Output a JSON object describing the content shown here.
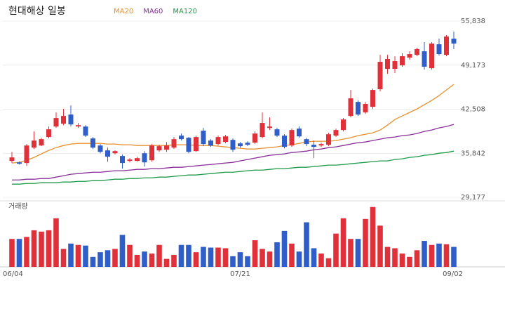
{
  "chart_data": {
    "type": "candlestick",
    "title": "현대해상 일봉",
    "categories": [
      "06/04",
      null,
      null,
      null,
      null,
      null,
      null,
      null,
      null,
      null,
      null,
      null,
      null,
      null,
      null,
      null,
      null,
      null,
      null,
      null,
      null,
      null,
      null,
      null,
      null,
      null,
      null,
      null,
      null,
      null,
      null,
      "07/21",
      null,
      null,
      null,
      null,
      null,
      null,
      null,
      null,
      null,
      null,
      null,
      null,
      null,
      null,
      null,
      null,
      null,
      null,
      null,
      null,
      null,
      null,
      null,
      null,
      null,
      null,
      null,
      null,
      "09/02"
    ],
    "open": [
      34690,
      34470,
      34370,
      36700,
      37020,
      38300,
      39890,
      40320,
      41700,
      39890,
      39890,
      38090,
      37020,
      36280,
      35850,
      35430,
      34690,
      34690,
      35850,
      34790,
      36280,
      36380,
      36700,
      38510,
      38190,
      36170,
      39260,
      37770,
      37240,
      37550,
      37870,
      37340,
      37450,
      37450,
      38300,
      39680,
      39470,
      38510,
      37020,
      39570,
      37980,
      37130,
      37020,
      37130,
      38510,
      39360,
      41490,
      43610,
      42020,
      42870,
      45530,
      48610,
      48610,
      49140,
      50310,
      50730,
      51270,
      48710,
      52330,
      50730,
      53180
    ],
    "high": [
      36060,
      34580,
      37240,
      39150,
      38190,
      39890,
      42020,
      42550,
      43080,
      40430,
      40100,
      38300,
      37240,
      36700,
      36280,
      35640,
      35110,
      35320,
      36170,
      37240,
      37130,
      37550,
      38300,
      38830,
      38300,
      38510,
      39680,
      37980,
      38510,
      38620,
      38090,
      37550,
      37660,
      39150,
      42020,
      41280,
      39680,
      38720,
      39570,
      39890,
      38190,
      37770,
      37450,
      38940,
      39570,
      41170,
      45420,
      43830,
      43610,
      45630,
      50730,
      50730,
      50520,
      50950,
      51270,
      51800,
      52650,
      52650,
      53180,
      53710,
      54240
    ],
    "low": [
      34370,
      34150,
      33940,
      36490,
      36920,
      38090,
      39680,
      40100,
      39890,
      39680,
      38300,
      36490,
      35850,
      34580,
      35640,
      33520,
      34470,
      34580,
      33830,
      34580,
      36060,
      36060,
      36490,
      37770,
      35850,
      36060,
      36920,
      36810,
      37020,
      37340,
      36060,
      36700,
      36920,
      37240,
      38090,
      39360,
      38300,
      36600,
      36810,
      38190,
      36920,
      35110,
      36810,
      36920,
      38300,
      39150,
      41280,
      41490,
      41810,
      42550,
      45210,
      47860,
      47970,
      48930,
      49990,
      50520,
      48500,
      48500,
      50630,
      50520,
      51590
    ],
    "close": [
      35220,
      34260,
      37020,
      37770,
      37980,
      39470,
      41170,
      41490,
      40210,
      40100,
      38510,
      36700,
      36060,
      35320,
      36170,
      34370,
      34900,
      35110,
      34470,
      37020,
      36920,
      37020,
      37980,
      37980,
      36060,
      38300,
      37240,
      37020,
      38300,
      38400,
      36380,
      36920,
      37130,
      38830,
      40430,
      39890,
      38510,
      36810,
      39360,
      38400,
      37240,
      36810,
      37240,
      38720,
      39360,
      40960,
      44150,
      41700,
      43300,
      45420,
      49670,
      50100,
      49780,
      50520,
      50840,
      51590,
      48930,
      52440,
      50840,
      53500,
      52440
    ],
    "up_color": "#e0313b",
    "down_color": "#2f5ec9",
    "ylim": [
      28650,
      56900
    ],
    "yticks": [
      {
        "value": 55838,
        "label": "55,838"
      },
      {
        "value": 49173,
        "label": "49,173"
      },
      {
        "value": 42508,
        "label": "42,508"
      },
      {
        "value": 35842,
        "label": "35,842"
      },
      {
        "value": 29177,
        "label": "29,177"
      }
    ],
    "grid": true,
    "series": [
      {
        "name": "MA20",
        "color": "#e8912e",
        "values": [
          34370,
          34470,
          34790,
          35220,
          35750,
          36280,
          36700,
          37020,
          37240,
          37340,
          37340,
          37340,
          37340,
          37240,
          37240,
          37130,
          37130,
          37020,
          37020,
          37020,
          37020,
          37020,
          37130,
          37130,
          37130,
          37020,
          37020,
          37020,
          36920,
          36810,
          36700,
          36600,
          36490,
          36490,
          36600,
          36700,
          36810,
          37020,
          37130,
          37340,
          37550,
          37660,
          37660,
          37660,
          37770,
          37980,
          38190,
          38510,
          38720,
          38940,
          39360,
          40100,
          40960,
          41490,
          42020,
          42550,
          43190,
          43830,
          44570,
          45420,
          46270
        ]
      },
      {
        "name": "MA60",
        "color": "#8a2f9a",
        "values": [
          31810,
          31810,
          31920,
          31920,
          32030,
          32030,
          32240,
          32450,
          32670,
          32770,
          32880,
          32980,
          32980,
          33090,
          33200,
          33200,
          33300,
          33410,
          33410,
          33520,
          33520,
          33620,
          33730,
          33730,
          33830,
          33940,
          34050,
          34150,
          34260,
          34370,
          34470,
          34690,
          34900,
          35110,
          35320,
          35540,
          35640,
          35750,
          35960,
          36060,
          36170,
          36380,
          36490,
          36700,
          36810,
          37020,
          37240,
          37450,
          37550,
          37770,
          37980,
          38190,
          38300,
          38510,
          38620,
          38830,
          39150,
          39360,
          39680,
          39890,
          40210
        ]
      },
      {
        "name": "MA120",
        "color": "#1e9a4a",
        "values": [
          31180,
          31180,
          31280,
          31280,
          31390,
          31390,
          31390,
          31500,
          31500,
          31600,
          31600,
          31710,
          31710,
          31810,
          31920,
          31920,
          32030,
          32030,
          32130,
          32130,
          32240,
          32240,
          32350,
          32450,
          32560,
          32560,
          32670,
          32770,
          32880,
          32980,
          32980,
          33090,
          33200,
          33300,
          33300,
          33410,
          33520,
          33520,
          33620,
          33730,
          33730,
          33830,
          33940,
          34050,
          34050,
          34150,
          34260,
          34370,
          34470,
          34580,
          34690,
          34690,
          34900,
          35010,
          35220,
          35320,
          35540,
          35640,
          35850,
          35960,
          36170
        ]
      }
    ],
    "volume": {
      "label": "거래량",
      "ylim": [
        0,
        95
      ],
      "values": [
        42,
        42,
        45,
        55,
        53,
        55,
        73,
        27,
        35,
        33,
        32,
        15,
        22,
        25,
        27,
        48,
        33,
        18,
        23,
        20,
        33,
        12,
        18,
        33,
        33,
        22,
        30,
        29,
        29,
        28,
        16,
        22,
        16,
        40,
        27,
        23,
        37,
        54,
        35,
        23,
        67,
        28,
        20,
        13,
        50,
        73,
        42,
        42,
        72,
        90,
        62,
        30,
        28,
        20,
        15,
        25,
        39,
        33,
        35,
        34,
        30
      ]
    }
  }
}
